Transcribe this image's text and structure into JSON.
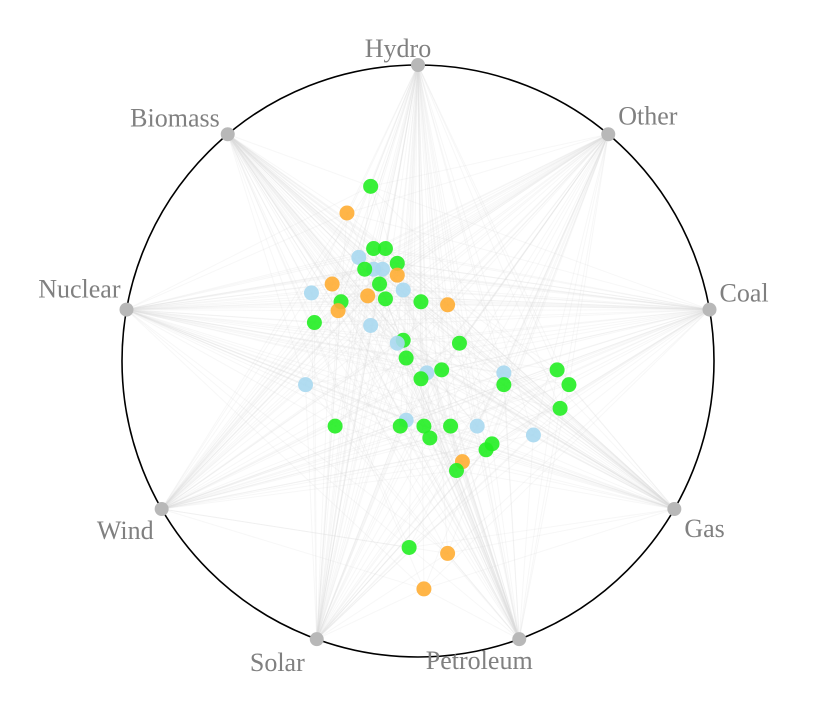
{
  "chart_data": {
    "type": "radviz",
    "title": "",
    "anchors": [
      "Hydro",
      "Other",
      "Coal",
      "Gas",
      "Petroleum",
      "Solar",
      "Wind",
      "Nuclear",
      "Biomass"
    ],
    "categories": [
      {
        "name": "green",
        "color": "#22ee22"
      },
      {
        "name": "blue",
        "color": "#a8d8f0"
      },
      {
        "name": "orange",
        "color": "#ffad33"
      }
    ],
    "points": [
      {
        "x": -0.16,
        "y": 0.59,
        "category": "green"
      },
      {
        "x": -0.24,
        "y": 0.5,
        "category": "orange"
      },
      {
        "x": -0.15,
        "y": 0.38,
        "category": "green"
      },
      {
        "x": -0.11,
        "y": 0.38,
        "category": "green"
      },
      {
        "x": -0.2,
        "y": 0.35,
        "category": "blue"
      },
      {
        "x": -0.07,
        "y": 0.33,
        "category": "green"
      },
      {
        "x": -0.15,
        "y": 0.31,
        "category": "blue"
      },
      {
        "x": -0.12,
        "y": 0.31,
        "category": "blue"
      },
      {
        "x": -0.18,
        "y": 0.31,
        "category": "green"
      },
      {
        "x": -0.07,
        "y": 0.29,
        "category": "orange"
      },
      {
        "x": -0.29,
        "y": 0.26,
        "category": "orange"
      },
      {
        "x": -0.36,
        "y": 0.23,
        "category": "blue"
      },
      {
        "x": -0.13,
        "y": 0.26,
        "category": "green"
      },
      {
        "x": -0.05,
        "y": 0.24,
        "category": "blue"
      },
      {
        "x": -0.26,
        "y": 0.2,
        "category": "green"
      },
      {
        "x": -0.17,
        "y": 0.22,
        "category": "orange"
      },
      {
        "x": -0.11,
        "y": 0.21,
        "category": "green"
      },
      {
        "x": 0.01,
        "y": 0.2,
        "category": "green"
      },
      {
        "x": 0.1,
        "y": 0.19,
        "category": "orange"
      },
      {
        "x": -0.27,
        "y": 0.17,
        "category": "orange"
      },
      {
        "x": -0.35,
        "y": 0.13,
        "category": "green"
      },
      {
        "x": -0.16,
        "y": 0.12,
        "category": "blue"
      },
      {
        "x": -0.05,
        "y": 0.07,
        "category": "green"
      },
      {
        "x": -0.07,
        "y": 0.06,
        "category": "blue"
      },
      {
        "x": 0.14,
        "y": 0.06,
        "category": "green"
      },
      {
        "x": -0.04,
        "y": 0.01,
        "category": "green"
      },
      {
        "x": 0.03,
        "y": -0.04,
        "category": "blue"
      },
      {
        "x": 0.08,
        "y": -0.03,
        "category": "green"
      },
      {
        "x": 0.01,
        "y": -0.06,
        "category": "green"
      },
      {
        "x": 0.29,
        "y": -0.04,
        "category": "blue"
      },
      {
        "x": 0.47,
        "y": -0.03,
        "category": "green"
      },
      {
        "x": 0.51,
        "y": -0.08,
        "category": "green"
      },
      {
        "x": 0.29,
        "y": -0.08,
        "category": "green"
      },
      {
        "x": -0.38,
        "y": -0.08,
        "category": "blue"
      },
      {
        "x": 0.48,
        "y": -0.16,
        "category": "green"
      },
      {
        "x": -0.04,
        "y": -0.2,
        "category": "blue"
      },
      {
        "x": -0.28,
        "y": -0.22,
        "category": "green"
      },
      {
        "x": -0.06,
        "y": -0.22,
        "category": "green"
      },
      {
        "x": 0.02,
        "y": -0.22,
        "category": "green"
      },
      {
        "x": 0.2,
        "y": -0.22,
        "category": "blue"
      },
      {
        "x": 0.39,
        "y": -0.25,
        "category": "blue"
      },
      {
        "x": 0.11,
        "y": -0.22,
        "category": "green"
      },
      {
        "x": 0.04,
        "y": -0.26,
        "category": "green"
      },
      {
        "x": 0.25,
        "y": -0.28,
        "category": "green"
      },
      {
        "x": 0.23,
        "y": -0.3,
        "category": "green"
      },
      {
        "x": 0.15,
        "y": -0.34,
        "category": "orange"
      },
      {
        "x": 0.13,
        "y": -0.37,
        "category": "green"
      },
      {
        "x": -0.03,
        "y": -0.63,
        "category": "green"
      },
      {
        "x": 0.1,
        "y": -0.65,
        "category": "orange"
      },
      {
        "x": 0.02,
        "y": -0.77,
        "category": "orange"
      }
    ]
  }
}
